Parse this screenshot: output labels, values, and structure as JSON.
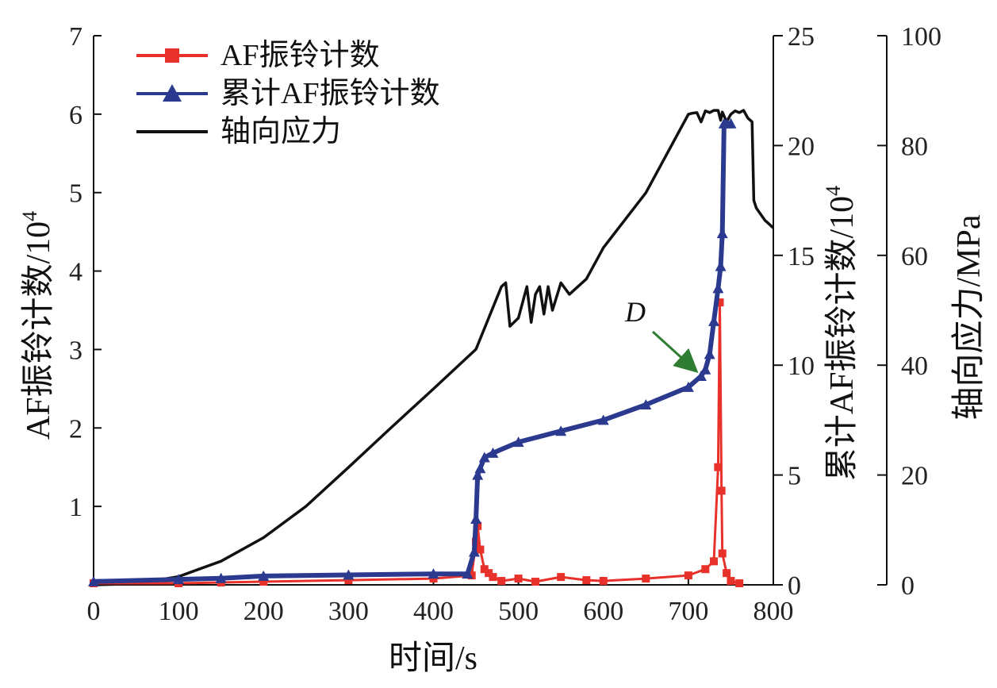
{
  "chart_data": {
    "type": "line",
    "xlabel": "时间/s",
    "xlim": [
      0,
      800
    ],
    "x_ticks": [
      "0",
      "100",
      "200",
      "300",
      "400",
      "500",
      "600",
      "700",
      "800"
    ],
    "axes": {
      "left": {
        "label_main": "AF振铃计数/10",
        "label_exp": "4",
        "ylim": [
          0,
          7
        ],
        "ticks": [
          "1",
          "2",
          "3",
          "4",
          "5",
          "6",
          "7"
        ],
        "tick_values": [
          1,
          2,
          3,
          4,
          5,
          6,
          7
        ]
      },
      "right1": {
        "label_main": "累计AF振铃计数/10",
        "label_exp": "4",
        "ylim": [
          0,
          25
        ],
        "ticks": [
          "0",
          "5",
          "10",
          "15",
          "20",
          "25"
        ],
        "tick_values": [
          0,
          5,
          10,
          15,
          20,
          25
        ]
      },
      "right2": {
        "label": "轴向应力/MPa",
        "ylim": [
          0,
          100
        ],
        "ticks": [
          "0",
          "20",
          "40",
          "60",
          "80",
          "100"
        ],
        "tick_values": [
          0,
          20,
          40,
          60,
          80,
          100
        ]
      }
    },
    "legend": {
      "placement": "top-left",
      "items": [
        {
          "label": "AF振铃计数",
          "color": "#e8312a",
          "marker": "square"
        },
        {
          "label": "累计AF振铃计数",
          "color": "#2b3a8f",
          "marker": "triangle"
        },
        {
          "label": "轴向应力",
          "color": "#111111",
          "marker": "none"
        }
      ]
    },
    "series": [
      {
        "name": "AF振铃计数",
        "axis": "left",
        "color": "#e8312a",
        "x": [
          0,
          100,
          150,
          200,
          300,
          400,
          445,
          450,
          452,
          455,
          460,
          465,
          470,
          480,
          500,
          520,
          550,
          580,
          600,
          650,
          700,
          720,
          730,
          735,
          737,
          739,
          740,
          745,
          750,
          760
        ],
        "y": [
          0.02,
          0.02,
          0.03,
          0.04,
          0.06,
          0.08,
          0.12,
          0.55,
          0.75,
          0.45,
          0.2,
          0.15,
          0.1,
          0.05,
          0.08,
          0.04,
          0.1,
          0.06,
          0.05,
          0.08,
          0.12,
          0.2,
          0.3,
          1.5,
          3.6,
          1.2,
          0.4,
          0.15,
          0.05,
          0.02
        ]
      },
      {
        "name": "累计AF振铃计数",
        "axis": "right1",
        "color": "#2b3a8f",
        "x": [
          0,
          100,
          150,
          200,
          300,
          400,
          440,
          448,
          450,
          452,
          455,
          460,
          470,
          500,
          550,
          600,
          650,
          700,
          715,
          720,
          725,
          730,
          735,
          738,
          740,
          742,
          745,
          750
        ],
        "y": [
          0.15,
          0.25,
          0.3,
          0.4,
          0.45,
          0.5,
          0.5,
          1.5,
          3.0,
          5.0,
          5.3,
          5.8,
          6.0,
          6.5,
          7.0,
          7.5,
          8.2,
          9.0,
          9.5,
          9.8,
          10.5,
          12.0,
          13.5,
          14.5,
          16.0,
          21.0,
          21.0,
          21.0
        ]
      },
      {
        "name": "轴向应力",
        "axis": "right2",
        "color": "#111111",
        "x": [
          0,
          50,
          100,
          150,
          200,
          250,
          300,
          350,
          400,
          450,
          480,
          485,
          490,
          500,
          510,
          515,
          520,
          525,
          530,
          535,
          540,
          550,
          560,
          570,
          580,
          600,
          650,
          700,
          705,
          710,
          715,
          720,
          725,
          730,
          735,
          738,
          740,
          745,
          750,
          755,
          760,
          765,
          770,
          775,
          777,
          780,
          790,
          800
        ],
        "y": [
          0,
          0.2,
          1.5,
          4.3,
          8.6,
          14.3,
          21.4,
          28.6,
          35.7,
          42.9,
          54.3,
          55.0,
          47.1,
          48.6,
          54.3,
          47.8,
          52.9,
          54.3,
          49.3,
          54.3,
          50.0,
          55.0,
          52.9,
          54.3,
          55.7,
          61.4,
          71.4,
          85.7,
          85.9,
          86.0,
          84.3,
          86.3,
          86.0,
          86.4,
          86.4,
          84.6,
          86.1,
          84.3,
          85.7,
          86.3,
          86.0,
          86.4,
          85.0,
          84.3,
          70.0,
          68.6,
          66.4,
          65.0
        ]
      }
    ],
    "annotations": [
      {
        "text": "D",
        "x": 714,
        "y_right1": 9.6
      }
    ]
  }
}
